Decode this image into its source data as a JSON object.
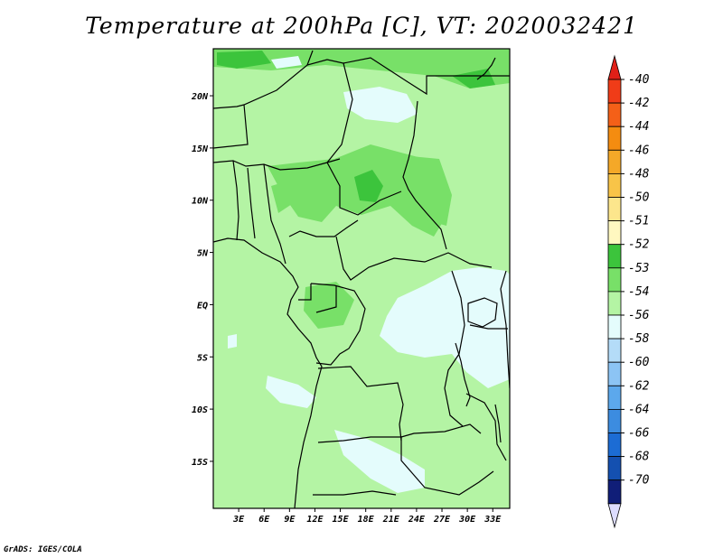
{
  "title": "Temperature at 200hPa [C], VT: 2020032421",
  "credit": "GrADS: IGES/COLA",
  "map": {
    "lat_range": [
      -19.5,
      24.5
    ],
    "lon_range": [
      0,
      35
    ],
    "lat_ticks": [
      {
        "value": 20,
        "label": "20N"
      },
      {
        "value": 15,
        "label": "15N"
      },
      {
        "value": 10,
        "label": "10N"
      },
      {
        "value": 5,
        "label": "5N"
      },
      {
        "value": 0,
        "label": "EQ"
      },
      {
        "value": -5,
        "label": "5S"
      },
      {
        "value": -10,
        "label": "10S"
      },
      {
        "value": -15,
        "label": "15S"
      }
    ],
    "lon_ticks": [
      {
        "value": 3,
        "label": "3E"
      },
      {
        "value": 6,
        "label": "6E"
      },
      {
        "value": 9,
        "label": "9E"
      },
      {
        "value": 12,
        "label": "12E"
      },
      {
        "value": 15,
        "label": "15E"
      },
      {
        "value": 18,
        "label": "18E"
      },
      {
        "value": 21,
        "label": "21E"
      },
      {
        "value": 24,
        "label": "24E"
      },
      {
        "value": 27,
        "label": "27E"
      },
      {
        "value": 30,
        "label": "30E"
      },
      {
        "value": 33,
        "label": "33E"
      }
    ],
    "dominant_field_color": "#b4f4a4"
  },
  "colorbar": {
    "top_arrow_color": "#e02018",
    "bottom_arrow_color": "#dcdcff",
    "entries": [
      {
        "label": "-40",
        "color": "#f03c18"
      },
      {
        "label": "-42",
        "color": "#f46018"
      },
      {
        "label": "-44",
        "color": "#f48c10"
      },
      {
        "label": "-46",
        "color": "#f4a828"
      },
      {
        "label": "-48",
        "color": "#f8c448"
      },
      {
        "label": "-50",
        "color": "#fce68c"
      },
      {
        "label": "-51",
        "color": "#fff8c0"
      },
      {
        "label": "-52",
        "color": "#3cc43c"
      },
      {
        "label": "-53",
        "color": "#78e068"
      },
      {
        "label": "-54",
        "color": "#b4f4a4"
      },
      {
        "label": "-56",
        "color": "#e4fcfc"
      },
      {
        "label": "-58",
        "color": "#b4dcf8"
      },
      {
        "label": "-60",
        "color": "#8cc4f4"
      },
      {
        "label": "-62",
        "color": "#5ca8ec"
      },
      {
        "label": "-64",
        "color": "#3c8ce0"
      },
      {
        "label": "-66",
        "color": "#1c6cd4"
      },
      {
        "label": "-68",
        "color": "#1450b0"
      },
      {
        "label": "-70",
        "color": "#101e78"
      }
    ]
  }
}
